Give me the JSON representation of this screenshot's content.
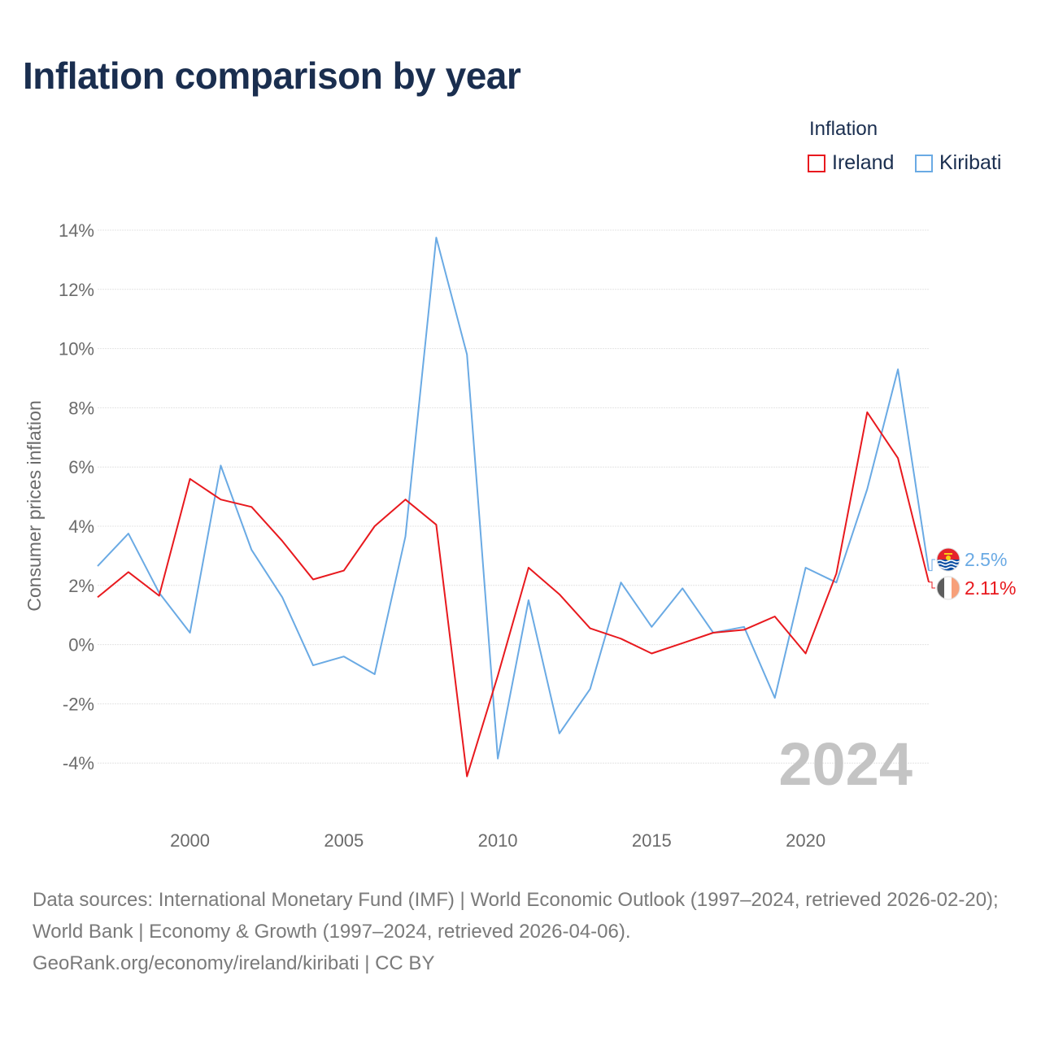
{
  "title": "Inflation comparison by year",
  "legend": {
    "title": "Inflation",
    "items": [
      {
        "label": "Ireland",
        "color": "#e8191e"
      },
      {
        "label": "Kiribati",
        "color": "#6aaae4"
      }
    ]
  },
  "source": {
    "line1": "Data sources: International Monetary Fund (IMF) | World Economic Outlook (1997–2024, retrieved 2026-02-20); World Bank | Economy & Growth (1997–2024, retrieved 2026-04-06).",
    "line2": "GeoRank.org/economy/ireland/kiribati | CC BY"
  },
  "chart_data": {
    "type": "line",
    "title": "Inflation comparison by year",
    "ylabel": "Consumer prices inflation",
    "xlabel": "",
    "year_marker": "2024",
    "xlim": [
      1997,
      2024
    ],
    "ylim": [
      -5,
      14
    ],
    "yticks": [
      14,
      12,
      10,
      8,
      6,
      4,
      2,
      0,
      -2,
      -4
    ],
    "ytick_labels": [
      "14%",
      "12%",
      "10%",
      "8%",
      "6%",
      "4%",
      "2%",
      "0%",
      "-2%",
      "-4%"
    ],
    "xticks": [
      2000,
      2005,
      2010,
      2015,
      2020
    ],
    "xtick_labels": [
      "2000",
      "2005",
      "2010",
      "2015",
      "2020"
    ],
    "x": [
      1997,
      1998,
      1999,
      2000,
      2001,
      2002,
      2003,
      2004,
      2005,
      2006,
      2007,
      2008,
      2009,
      2010,
      2011,
      2012,
      2013,
      2014,
      2015,
      2016,
      2017,
      2018,
      2019,
      2020,
      2021,
      2022,
      2023,
      2024
    ],
    "series": [
      {
        "name": "Ireland",
        "color": "#e8191e",
        "end_label": "2.11%",
        "values": [
          1.6,
          2.45,
          1.65,
          5.6,
          4.9,
          4.65,
          3.5,
          2.2,
          2.5,
          4.0,
          4.9,
          4.05,
          -4.45,
          -1.05,
          2.6,
          1.7,
          0.55,
          0.2,
          -0.3,
          0.05,
          0.4,
          0.5,
          0.95,
          -0.3,
          2.4,
          7.85,
          6.3,
          2.11
        ]
      },
      {
        "name": "Kiribati",
        "color": "#6aaae4",
        "end_label": "2.5%",
        "values": [
          2.65,
          3.75,
          1.75,
          0.4,
          6.05,
          3.2,
          1.6,
          -0.7,
          -0.4,
          -1.0,
          3.65,
          13.75,
          9.8,
          -3.85,
          1.5,
          -3.0,
          -1.5,
          2.1,
          0.6,
          1.9,
          0.4,
          0.6,
          -1.8,
          2.6,
          2.1,
          5.25,
          9.3,
          2.5
        ]
      }
    ]
  }
}
